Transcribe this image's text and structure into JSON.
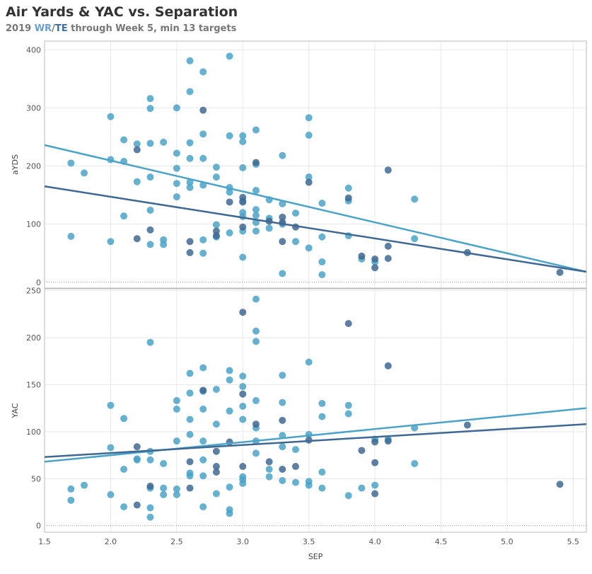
{
  "title": "Air Yards & YAC vs. Separation",
  "subtitle": {
    "prefix": "2019 ",
    "wr": "WR",
    "slash": "/",
    "te": "TE",
    "suffix": " through Week 5, min 13 targets"
  },
  "colors": {
    "WR": "#4ba3c8",
    "TE": "#3f6893",
    "grid": "#e8e8e8",
    "frame": "#bbbbbb",
    "zero_line": "#999999"
  },
  "chart_data": [
    {
      "type": "scatter",
      "panel": "top",
      "xlabel": "SEP",
      "ylabel": "aYDS",
      "xlim": [
        1.5,
        5.6
      ],
      "ylim": [
        -10,
        415
      ],
      "yticks": [
        0,
        100,
        200,
        300,
        400
      ],
      "xticks": [
        1.5,
        2.0,
        2.5,
        3.0,
        3.5,
        4.0,
        4.5,
        5.0,
        5.5
      ],
      "grid": true,
      "series": [
        {
          "key": "WR",
          "points": [
            [
              1.7,
              205
            ],
            [
              1.7,
              79
            ],
            [
              1.8,
              188
            ],
            [
              2.0,
              285
            ],
            [
              2.0,
              211
            ],
            [
              2.0,
              70
            ],
            [
              2.1,
              245
            ],
            [
              2.1,
              208
            ],
            [
              2.1,
              114
            ],
            [
              2.2,
              238
            ],
            [
              2.2,
              173
            ],
            [
              2.3,
              316
            ],
            [
              2.3,
              299
            ],
            [
              2.3,
              239
            ],
            [
              2.3,
              181
            ],
            [
              2.3,
              124
            ],
            [
              2.3,
              65
            ],
            [
              2.4,
              241
            ],
            [
              2.4,
              73
            ],
            [
              2.4,
              65
            ],
            [
              2.5,
              300
            ],
            [
              2.5,
              222
            ],
            [
              2.5,
              196
            ],
            [
              2.5,
              170
            ],
            [
              2.5,
              147
            ],
            [
              2.6,
              381
            ],
            [
              2.6,
              328
            ],
            [
              2.6,
              240
            ],
            [
              2.6,
              213
            ],
            [
              2.6,
              172
            ],
            [
              2.6,
              163
            ],
            [
              2.7,
              362
            ],
            [
              2.7,
              255
            ],
            [
              2.7,
              213
            ],
            [
              2.7,
              167
            ],
            [
              2.7,
              73
            ],
            [
              2.7,
              50
            ],
            [
              2.8,
              198
            ],
            [
              2.8,
              181
            ],
            [
              2.8,
              99
            ],
            [
              2.8,
              78
            ],
            [
              2.9,
              389
            ],
            [
              2.9,
              252
            ],
            [
              2.9,
              163
            ],
            [
              2.9,
              155
            ],
            [
              2.9,
              85
            ],
            [
              3.0,
              252
            ],
            [
              3.0,
              242
            ],
            [
              3.0,
              197
            ],
            [
              3.0,
              140
            ],
            [
              3.0,
              120
            ],
            [
              3.0,
              113
            ],
            [
              3.0,
              88
            ],
            [
              3.0,
              43
            ],
            [
              3.1,
              262
            ],
            [
              3.1,
              203
            ],
            [
              3.1,
              158
            ],
            [
              3.1,
              125
            ],
            [
              3.1,
              115
            ],
            [
              3.1,
              103
            ],
            [
              3.1,
              88
            ],
            [
              3.2,
              142
            ],
            [
              3.2,
              110
            ],
            [
              3.2,
              93
            ],
            [
              3.3,
              218
            ],
            [
              3.3,
              135
            ],
            [
              3.3,
              100
            ],
            [
              3.3,
              15
            ],
            [
              3.4,
              119
            ],
            [
              3.4,
              70
            ],
            [
              3.5,
              283
            ],
            [
              3.5,
              253
            ],
            [
              3.5,
              181
            ],
            [
              3.5,
              59
            ],
            [
              3.6,
              136
            ],
            [
              3.6,
              78
            ],
            [
              3.6,
              35
            ],
            [
              3.6,
              13
            ],
            [
              3.8,
              162
            ],
            [
              3.8,
              140
            ],
            [
              3.8,
              80
            ],
            [
              3.9,
              40
            ],
            [
              4.0,
              35
            ],
            [
              4.3,
              143
            ],
            [
              4.3,
              75
            ]
          ]
        },
        {
          "key": "TE",
          "points": [
            [
              2.2,
              228
            ],
            [
              2.2,
              75
            ],
            [
              2.3,
              90
            ],
            [
              2.6,
              70
            ],
            [
              2.6,
              51
            ],
            [
              2.7,
              296
            ],
            [
              2.8,
              88
            ],
            [
              2.8,
              80
            ],
            [
              2.9,
              138
            ],
            [
              3.0,
              146
            ],
            [
              3.0,
              138
            ],
            [
              3.0,
              95
            ],
            [
              3.1,
              206
            ],
            [
              3.2,
              105
            ],
            [
              3.3,
              112
            ],
            [
              3.3,
              103
            ],
            [
              3.3,
              70
            ],
            [
              3.4,
              95
            ],
            [
              3.5,
              172
            ],
            [
              3.8,
              145
            ],
            [
              3.9,
              45
            ],
            [
              4.0,
              40
            ],
            [
              4.0,
              25
            ],
            [
              4.1,
              193
            ],
            [
              4.1,
              62
            ],
            [
              4.1,
              41
            ],
            [
              4.7,
              51
            ],
            [
              5.4,
              17
            ]
          ]
        }
      ],
      "trendlines": [
        {
          "key": "WR",
          "x": [
            1.5,
            5.6
          ],
          "y": [
            236,
            18
          ]
        },
        {
          "key": "TE",
          "x": [
            1.5,
            5.6
          ],
          "y": [
            165,
            18
          ]
        }
      ]
    },
    {
      "type": "scatter",
      "panel": "bottom",
      "xlabel": "SEP",
      "ylabel": "YAC",
      "xlim": [
        1.5,
        5.6
      ],
      "ylim": [
        -7,
        252
      ],
      "yticks": [
        0,
        50,
        100,
        150,
        200,
        250
      ],
      "xticks": [
        1.5,
        2.0,
        2.5,
        3.0,
        3.5,
        4.0,
        4.5,
        5.0,
        5.5
      ],
      "grid": true,
      "series": [
        {
          "key": "WR",
          "points": [
            [
              1.7,
              39
            ],
            [
              1.7,
              27
            ],
            [
              1.8,
              43
            ],
            [
              2.0,
              128
            ],
            [
              2.0,
              83
            ],
            [
              2.0,
              33
            ],
            [
              2.1,
              114
            ],
            [
              2.1,
              60
            ],
            [
              2.1,
              20
            ],
            [
              2.2,
              71
            ],
            [
              2.2,
              70
            ],
            [
              2.3,
              195
            ],
            [
              2.3,
              79
            ],
            [
              2.3,
              70
            ],
            [
              2.3,
              40
            ],
            [
              2.3,
              19
            ],
            [
              2.3,
              9
            ],
            [
              2.4,
              66
            ],
            [
              2.4,
              40
            ],
            [
              2.4,
              33
            ],
            [
              2.5,
              133
            ],
            [
              2.5,
              124
            ],
            [
              2.5,
              90
            ],
            [
              2.5,
              39
            ],
            [
              2.5,
              33
            ],
            [
              2.6,
              162
            ],
            [
              2.6,
              141
            ],
            [
              2.6,
              113
            ],
            [
              2.6,
              97
            ],
            [
              2.6,
              56
            ],
            [
              2.6,
              53
            ],
            [
              2.7,
              168
            ],
            [
              2.7,
              143
            ],
            [
              2.7,
              124
            ],
            [
              2.7,
              90
            ],
            [
              2.7,
              70
            ],
            [
              2.7,
              53
            ],
            [
              2.7,
              20
            ],
            [
              2.8,
              145
            ],
            [
              2.8,
              108
            ],
            [
              2.8,
              34
            ],
            [
              2.9,
              165
            ],
            [
              2.9,
              155
            ],
            [
              2.9,
              122
            ],
            [
              2.9,
              41
            ],
            [
              2.9,
              17
            ],
            [
              2.9,
              13
            ],
            [
              3.0,
              159
            ],
            [
              3.0,
              148
            ],
            [
              3.0,
              127
            ],
            [
              3.0,
              113
            ],
            [
              3.0,
              52
            ],
            [
              3.0,
              49
            ],
            [
              3.0,
              45
            ],
            [
              3.1,
              241
            ],
            [
              3.1,
              207
            ],
            [
              3.1,
              196
            ],
            [
              3.1,
              133
            ],
            [
              3.1,
              104
            ],
            [
              3.1,
              90
            ],
            [
              3.1,
              77
            ],
            [
              3.2,
              60
            ],
            [
              3.2,
              52
            ],
            [
              3.3,
              160
            ],
            [
              3.3,
              131
            ],
            [
              3.3,
              96
            ],
            [
              3.3,
              84
            ],
            [
              3.3,
              48
            ],
            [
              3.4,
              81
            ],
            [
              3.4,
              46
            ],
            [
              3.5,
              174
            ],
            [
              3.5,
              97
            ],
            [
              3.5,
              47
            ],
            [
              3.5,
              43
            ],
            [
              3.6,
              130
            ],
            [
              3.6,
              116
            ],
            [
              3.6,
              57
            ],
            [
              3.6,
              40
            ],
            [
              3.8,
              128
            ],
            [
              3.8,
              119
            ],
            [
              3.8,
              32
            ],
            [
              3.9,
              40
            ],
            [
              4.0,
              92
            ],
            [
              4.0,
              43
            ],
            [
              4.1,
              92
            ],
            [
              4.3,
              104
            ],
            [
              4.3,
              66
            ]
          ]
        },
        {
          "key": "TE",
          "points": [
            [
              2.2,
              84
            ],
            [
              2.2,
              22
            ],
            [
              2.3,
              42
            ],
            [
              2.6,
              68
            ],
            [
              2.6,
              40
            ],
            [
              2.7,
              144
            ],
            [
              2.8,
              79
            ],
            [
              2.8,
              63
            ],
            [
              2.8,
              57
            ],
            [
              2.9,
              89
            ],
            [
              3.0,
              227
            ],
            [
              3.0,
              140
            ],
            [
              3.0,
              63
            ],
            [
              3.1,
              108
            ],
            [
              3.2,
              68
            ],
            [
              3.3,
              112
            ],
            [
              3.3,
              60
            ],
            [
              3.4,
              63
            ],
            [
              3.5,
              91
            ],
            [
              3.8,
              215
            ],
            [
              3.9,
              80
            ],
            [
              4.0,
              89
            ],
            [
              4.0,
              67
            ],
            [
              4.0,
              34
            ],
            [
              4.1,
              170
            ],
            [
              4.1,
              90
            ],
            [
              4.7,
              107
            ],
            [
              5.4,
              44
            ]
          ]
        }
      ],
      "trendlines": [
        {
          "key": "WR",
          "x": [
            1.5,
            5.6
          ],
          "y": [
            68,
            125
          ]
        },
        {
          "key": "TE",
          "x": [
            1.5,
            5.6
          ],
          "y": [
            73,
            108
          ]
        }
      ]
    }
  ]
}
